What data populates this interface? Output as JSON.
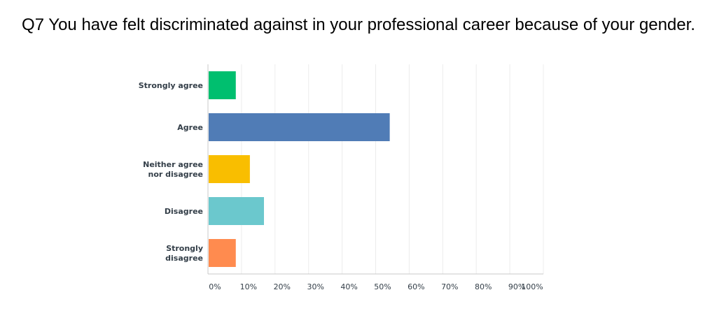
{
  "chart_data": {
    "type": "bar",
    "orientation": "horizontal",
    "title": "Q7 You have felt discriminated against in your professional career because of your gender.",
    "categories": [
      [
        "Strongly agree"
      ],
      [
        "Agree"
      ],
      [
        "Neither agree",
        "nor disagree"
      ],
      [
        "Disagree"
      ],
      [
        "Strongly",
        "disagree"
      ]
    ],
    "values": [
      8.3,
      54.2,
      12.5,
      16.7,
      8.3
    ],
    "colors": [
      "#00bf6f",
      "#507cb6",
      "#f9be00",
      "#6bc8cd",
      "#ff8b4f"
    ],
    "xlim": [
      0,
      100
    ],
    "x_ticks": [
      "0%",
      "10%",
      "20%",
      "30%",
      "40%",
      "50%",
      "60%",
      "70%",
      "80%",
      "90%",
      "100%"
    ],
    "grid": true
  }
}
